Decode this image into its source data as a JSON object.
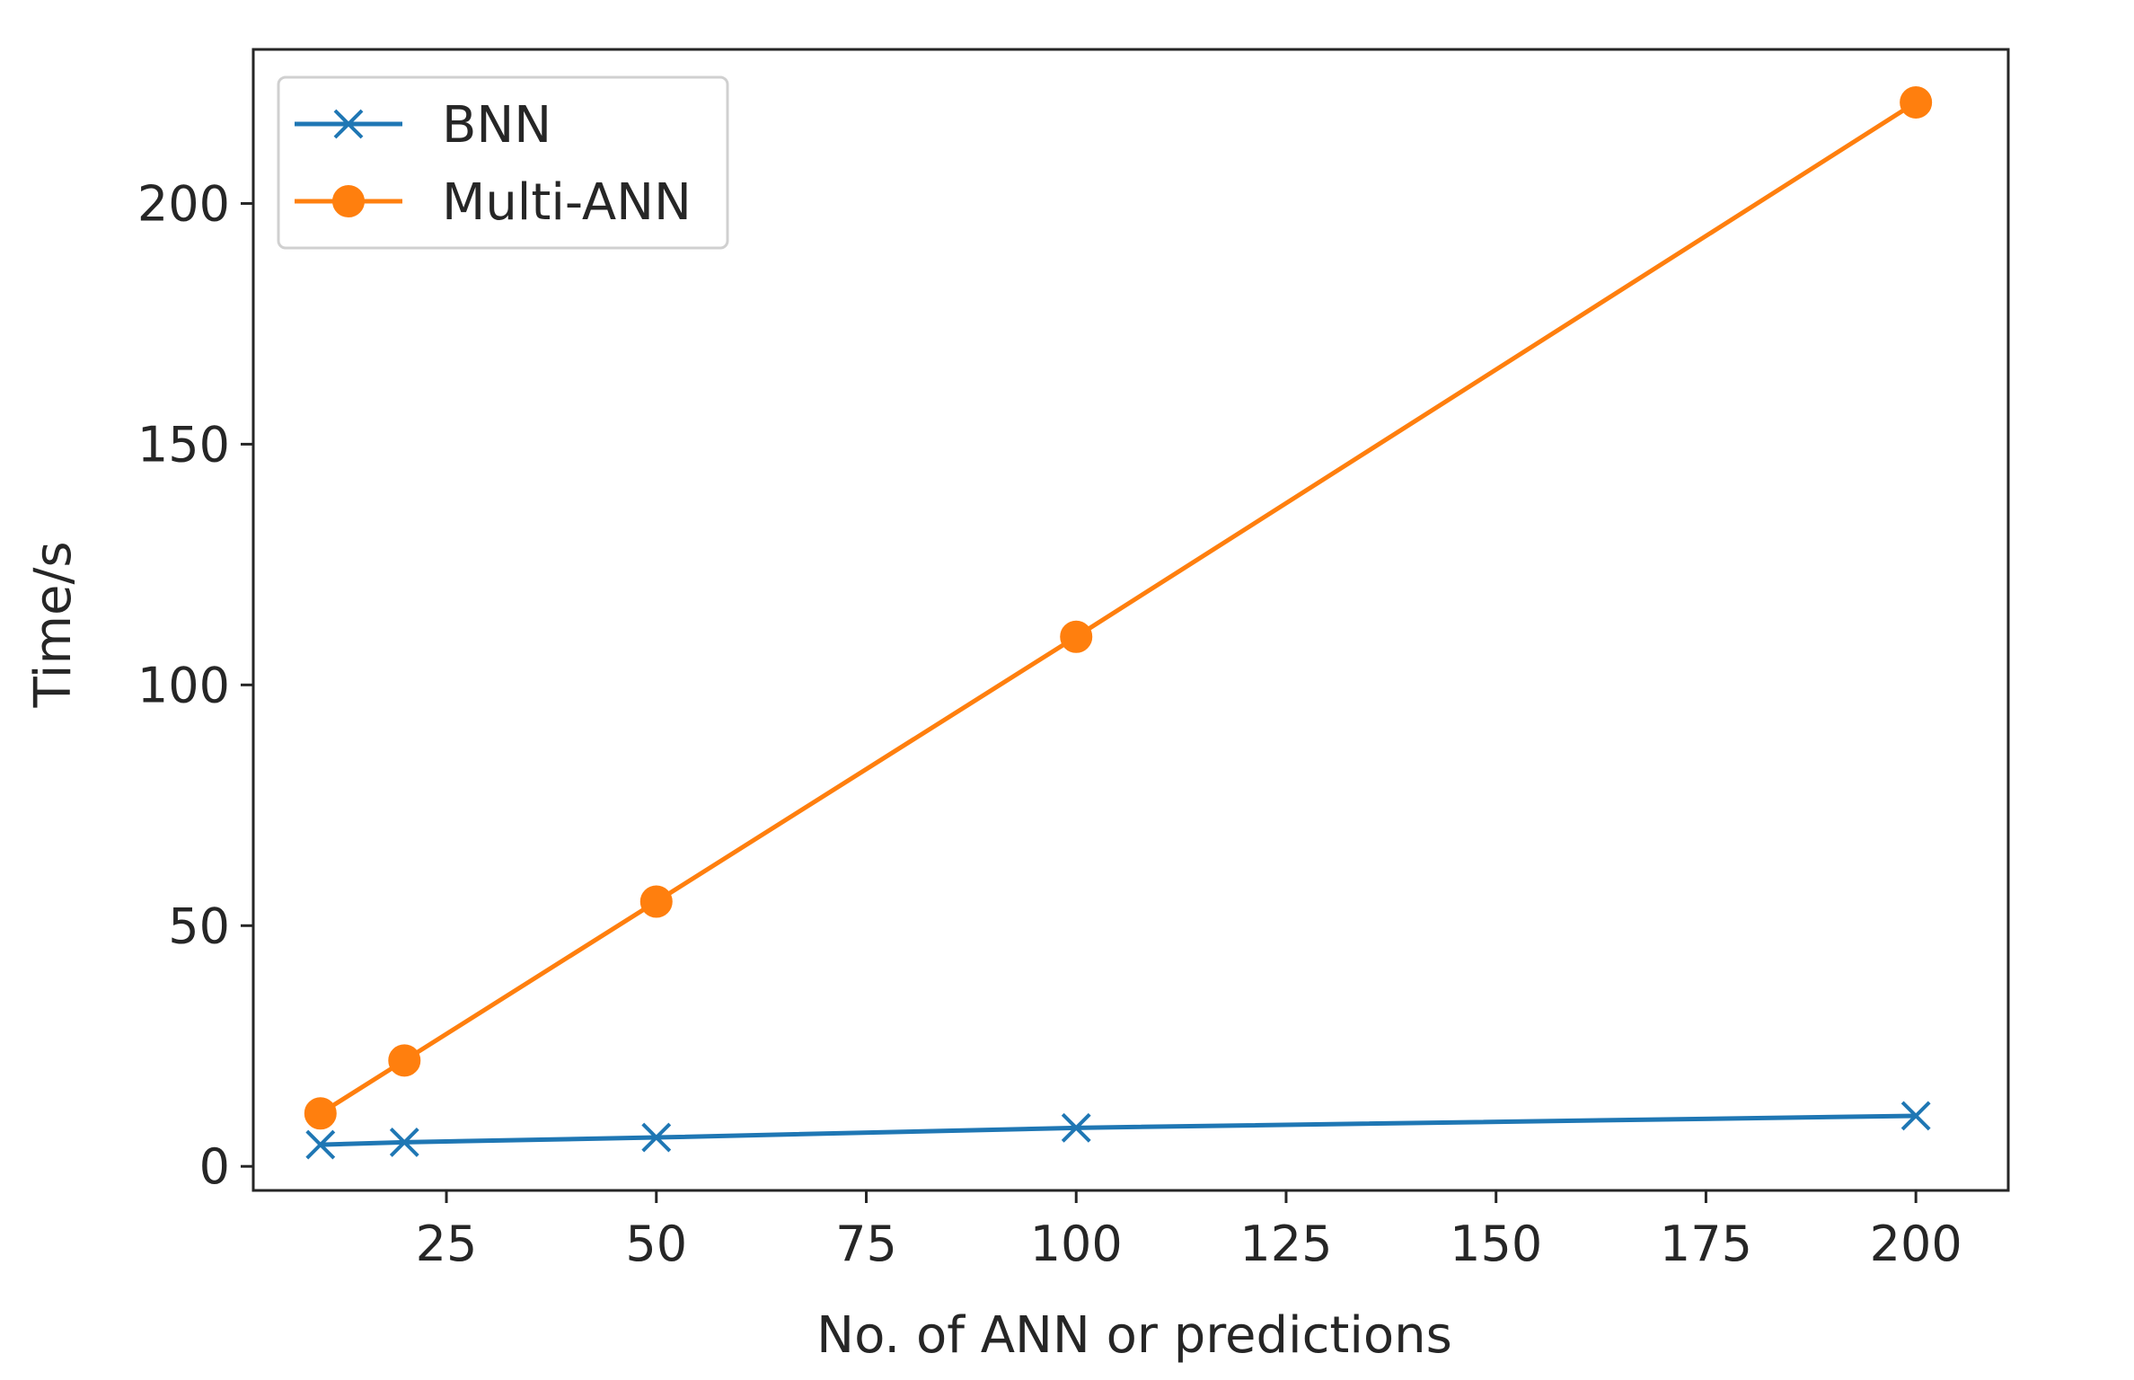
{
  "chart_data": {
    "type": "line",
    "title": "",
    "xlabel": "No. of ANN or predictions",
    "ylabel": "Time/s",
    "xlim": [
      2,
      211
    ],
    "ylim": [
      -5,
      232
    ],
    "xticks": [
      25,
      50,
      75,
      100,
      125,
      150,
      175,
      200
    ],
    "yticks": [
      0,
      50,
      100,
      150,
      200
    ],
    "grid": false,
    "legend_position": "top-left",
    "series": [
      {
        "name": "BNN",
        "color": "#1f77b4",
        "marker": "x",
        "x": [
          10,
          20,
          50,
          100,
          200
        ],
        "y": [
          4.5,
          5,
          6,
          8,
          10.5
        ]
      },
      {
        "name": "Multi-ANN",
        "color": "#ff7f0e",
        "marker": "circle",
        "x": [
          10,
          20,
          50,
          100,
          200
        ],
        "y": [
          11,
          22,
          55,
          110,
          221
        ]
      }
    ]
  }
}
